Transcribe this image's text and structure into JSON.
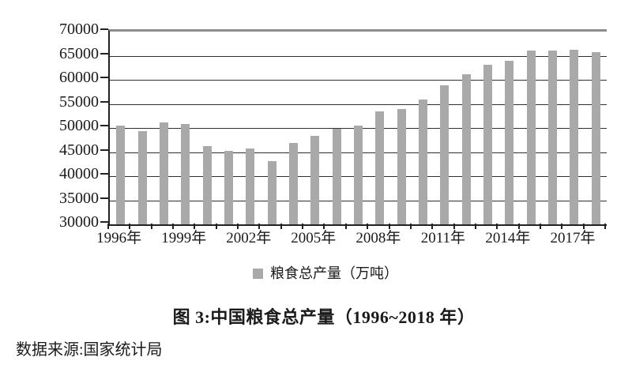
{
  "chart_data": {
    "type": "bar",
    "title": "图 3:中国粮食总产量（1996~2018 年）",
    "categories": [
      "1996",
      "1997",
      "1998",
      "1999",
      "2000",
      "2001",
      "2002",
      "2003",
      "2004",
      "2005",
      "2006",
      "2007",
      "2008",
      "2009",
      "2010",
      "2011",
      "2012",
      "2013",
      "2014",
      "2015",
      "2016",
      "2017",
      "2018"
    ],
    "values": [
      50454,
      49417,
      51230,
      50839,
      46218,
      45264,
      45706,
      43070,
      46947,
      48402,
      49804,
      50414,
      53434,
      53941,
      55911,
      58849,
      61223,
      63048,
      63965,
      66060,
      66044,
      66161,
      65789
    ],
    "series_name": "粮食总产量（万吨）",
    "xlabel": "",
    "ylabel": "",
    "ylim": [
      30000,
      70000
    ],
    "y_ticks": [
      30000,
      35000,
      40000,
      45000,
      50000,
      55000,
      60000,
      65000,
      70000
    ],
    "x_axis": {
      "tick_label_indices": [
        0,
        3,
        6,
        9,
        12,
        15,
        18,
        21
      ],
      "tick_labels": [
        "1996年",
        "1999年",
        "2002年",
        "2005年",
        "2008年",
        "2011年",
        "2014年",
        "2017年"
      ]
    },
    "grid": true,
    "legend_position": "bottom-center",
    "bar_color": "#a9a9a9"
  },
  "legend": {
    "label": "粮食总产量（万吨）"
  },
  "caption": "图 3:中国粮食总产量（1996~2018 年）",
  "source": "数据来源:国家统计局"
}
